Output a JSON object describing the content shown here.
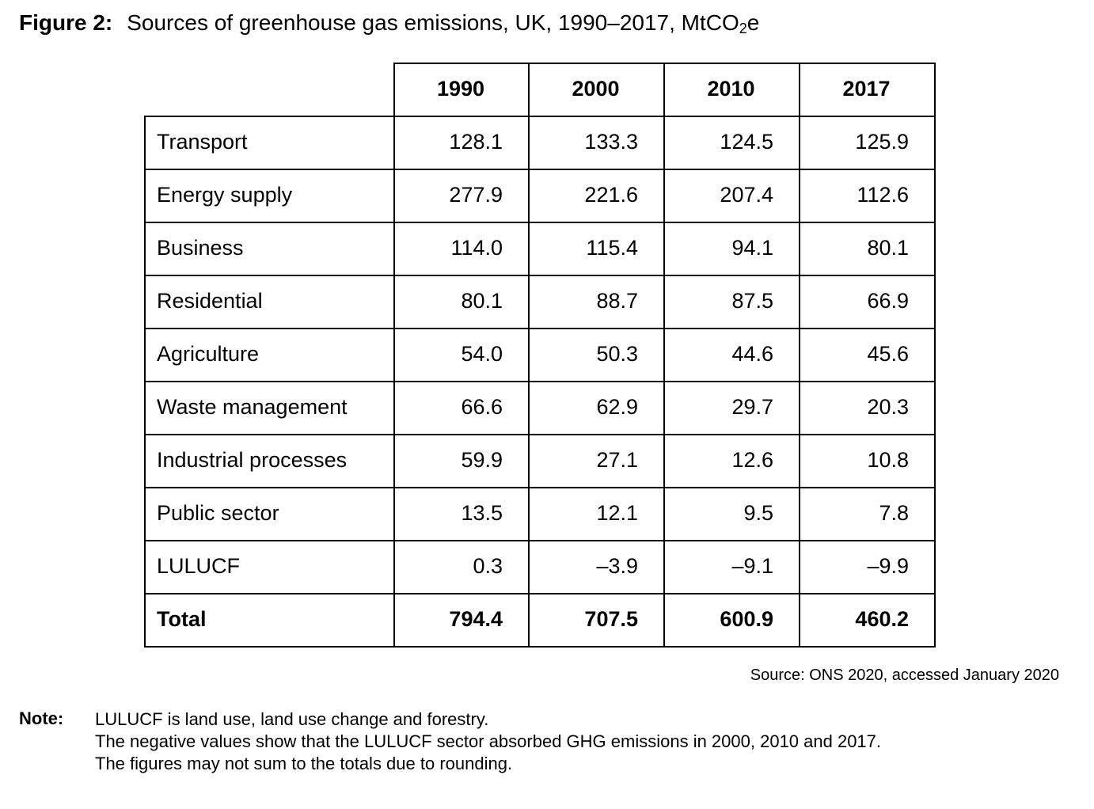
{
  "figure": {
    "label": "Figure 2:",
    "title_main": "Sources of greenhouse gas emissions, UK, 1990–2017, MtCO",
    "title_sub": "2",
    "title_suffix": "e"
  },
  "table": {
    "columns": [
      "1990",
      "2000",
      "2010",
      "2017"
    ],
    "rows": [
      {
        "label": "Transport",
        "values": [
          "128.1",
          "133.3",
          "124.5",
          "125.9"
        ]
      },
      {
        "label": "Energy supply",
        "values": [
          "277.9",
          "221.6",
          "207.4",
          "112.6"
        ]
      },
      {
        "label": "Business",
        "values": [
          "114.0",
          "115.4",
          "94.1",
          "80.1"
        ]
      },
      {
        "label": "Residential",
        "values": [
          "80.1",
          "88.7",
          "87.5",
          "66.9"
        ]
      },
      {
        "label": "Agriculture",
        "values": [
          "54.0",
          "50.3",
          "44.6",
          "45.6"
        ]
      },
      {
        "label": "Waste management",
        "values": [
          "66.6",
          "62.9",
          "29.7",
          "20.3"
        ]
      },
      {
        "label": "Industrial processes",
        "values": [
          "59.9",
          "27.1",
          "12.6",
          "10.8"
        ]
      },
      {
        "label": "Public sector",
        "values": [
          "13.5",
          "12.1",
          "9.5",
          "7.8"
        ]
      },
      {
        "label": "LULUCF",
        "values": [
          "0.3",
          "–3.9",
          "–9.1",
          "–9.9"
        ]
      },
      {
        "label": "Total",
        "values": [
          "794.4",
          "707.5",
          "600.9",
          "460.2"
        ],
        "bold": true
      }
    ]
  },
  "source": "Source: ONS 2020, accessed January 2020",
  "note": {
    "label": "Note:",
    "lines": [
      "LULUCF is land use, land use change and forestry.",
      "The negative values show that the LULUCF sector absorbed GHG emissions in 2000, 2010 and 2017.",
      "The figures may not sum to the totals due to rounding."
    ]
  }
}
